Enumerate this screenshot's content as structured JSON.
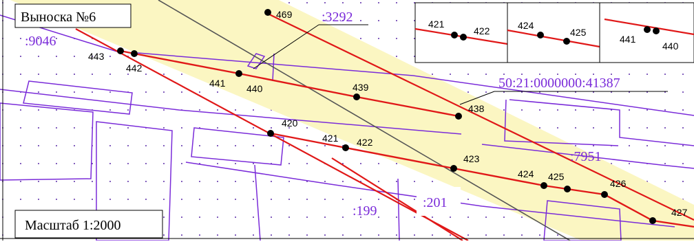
{
  "callout": {
    "title": "Выноска №6"
  },
  "scale": {
    "label": "Масштаб 1:2000"
  },
  "parcels": {
    "p9046": ":9046",
    "p3292": ":3292",
    "p41387": "50:21:0000000:41387",
    "p7951": ":7951",
    "p199": ":199",
    "p201": ":201"
  },
  "points": {
    "p469": "469",
    "p443": "443",
    "p442": "442",
    "p441": "441",
    "p440": "440",
    "p439": "439",
    "p438": "438",
    "p420": "420",
    "p421": "421",
    "p422": "422",
    "p423": "423",
    "p424": "424",
    "p425": "425",
    "p426": "426",
    "p427": "427"
  },
  "insets": {
    "a": {
      "left": "421",
      "right": "422"
    },
    "b": {
      "left": "424",
      "right": "425"
    },
    "c": {
      "left": "441",
      "right": "440"
    }
  },
  "colors": {
    "boundary": "#e01818",
    "parcel": "#7a2bd9",
    "zone": "#fbf6c2",
    "axis": "#555555",
    "point": "#000000"
  }
}
